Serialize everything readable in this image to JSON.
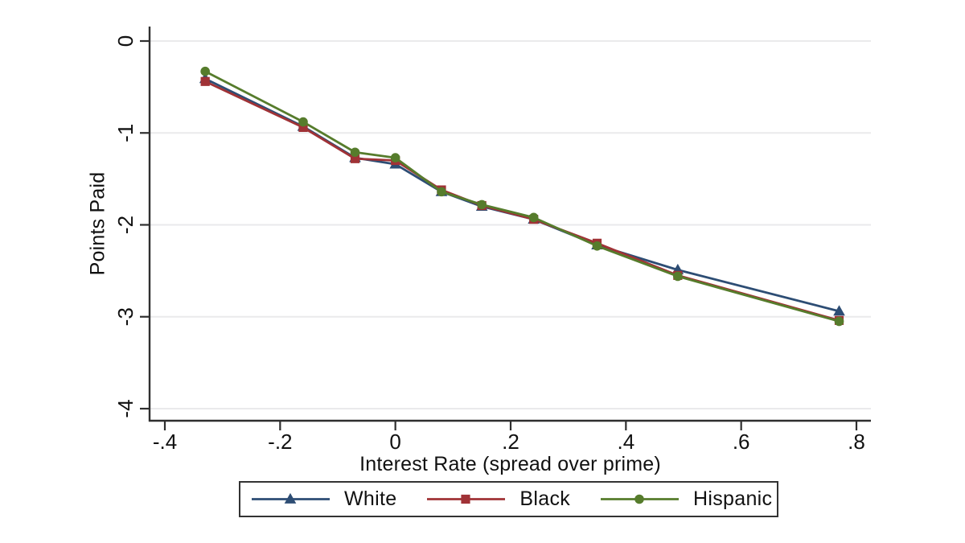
{
  "chart_data": {
    "type": "line",
    "title": "",
    "xlabel": "Interest Rate (spread over prime)",
    "ylabel": "Points Paid",
    "xlim": [
      -0.4,
      0.8
    ],
    "ylim": [
      -4,
      0
    ],
    "grid": "horizontal-only",
    "grid_color": "#eaeaec",
    "axis_color": "#2f2f2f",
    "background": "#ffffff",
    "legend_position": "bottom-center",
    "x_ticks": {
      "values": [
        -0.4,
        -0.2,
        0,
        0.2,
        0.4,
        0.6,
        0.8
      ],
      "labels": [
        "-.4",
        "-.2",
        "0",
        ".2",
        ".4",
        ".6",
        ".8"
      ]
    },
    "y_ticks": {
      "values": [
        0,
        -1,
        -2,
        -3,
        -4
      ],
      "labels": [
        "0",
        "-1",
        "-2",
        "-3",
        "-4"
      ]
    },
    "x": [
      -0.33,
      -0.16,
      -0.07,
      0.0,
      0.08,
      0.15,
      0.24,
      0.35,
      0.49,
      0.77
    ],
    "series": [
      {
        "name": "White",
        "color": "#2d4d74",
        "marker": "triangle",
        "values": [
          -0.41,
          -0.93,
          -1.27,
          -1.34,
          -1.64,
          -1.8,
          -1.94,
          -2.22,
          -2.49,
          -2.94
        ]
      },
      {
        "name": "Black",
        "color": "#a03236",
        "marker": "square",
        "values": [
          -0.44,
          -0.94,
          -1.28,
          -1.3,
          -1.62,
          -1.79,
          -1.94,
          -2.2,
          -2.55,
          -3.04
        ]
      },
      {
        "name": "Hispanic",
        "color": "#567c2c",
        "marker": "circle",
        "values": [
          -0.33,
          -0.88,
          -1.21,
          -1.27,
          -1.64,
          -1.78,
          -1.92,
          -2.23,
          -2.56,
          -3.05
        ]
      }
    ]
  }
}
